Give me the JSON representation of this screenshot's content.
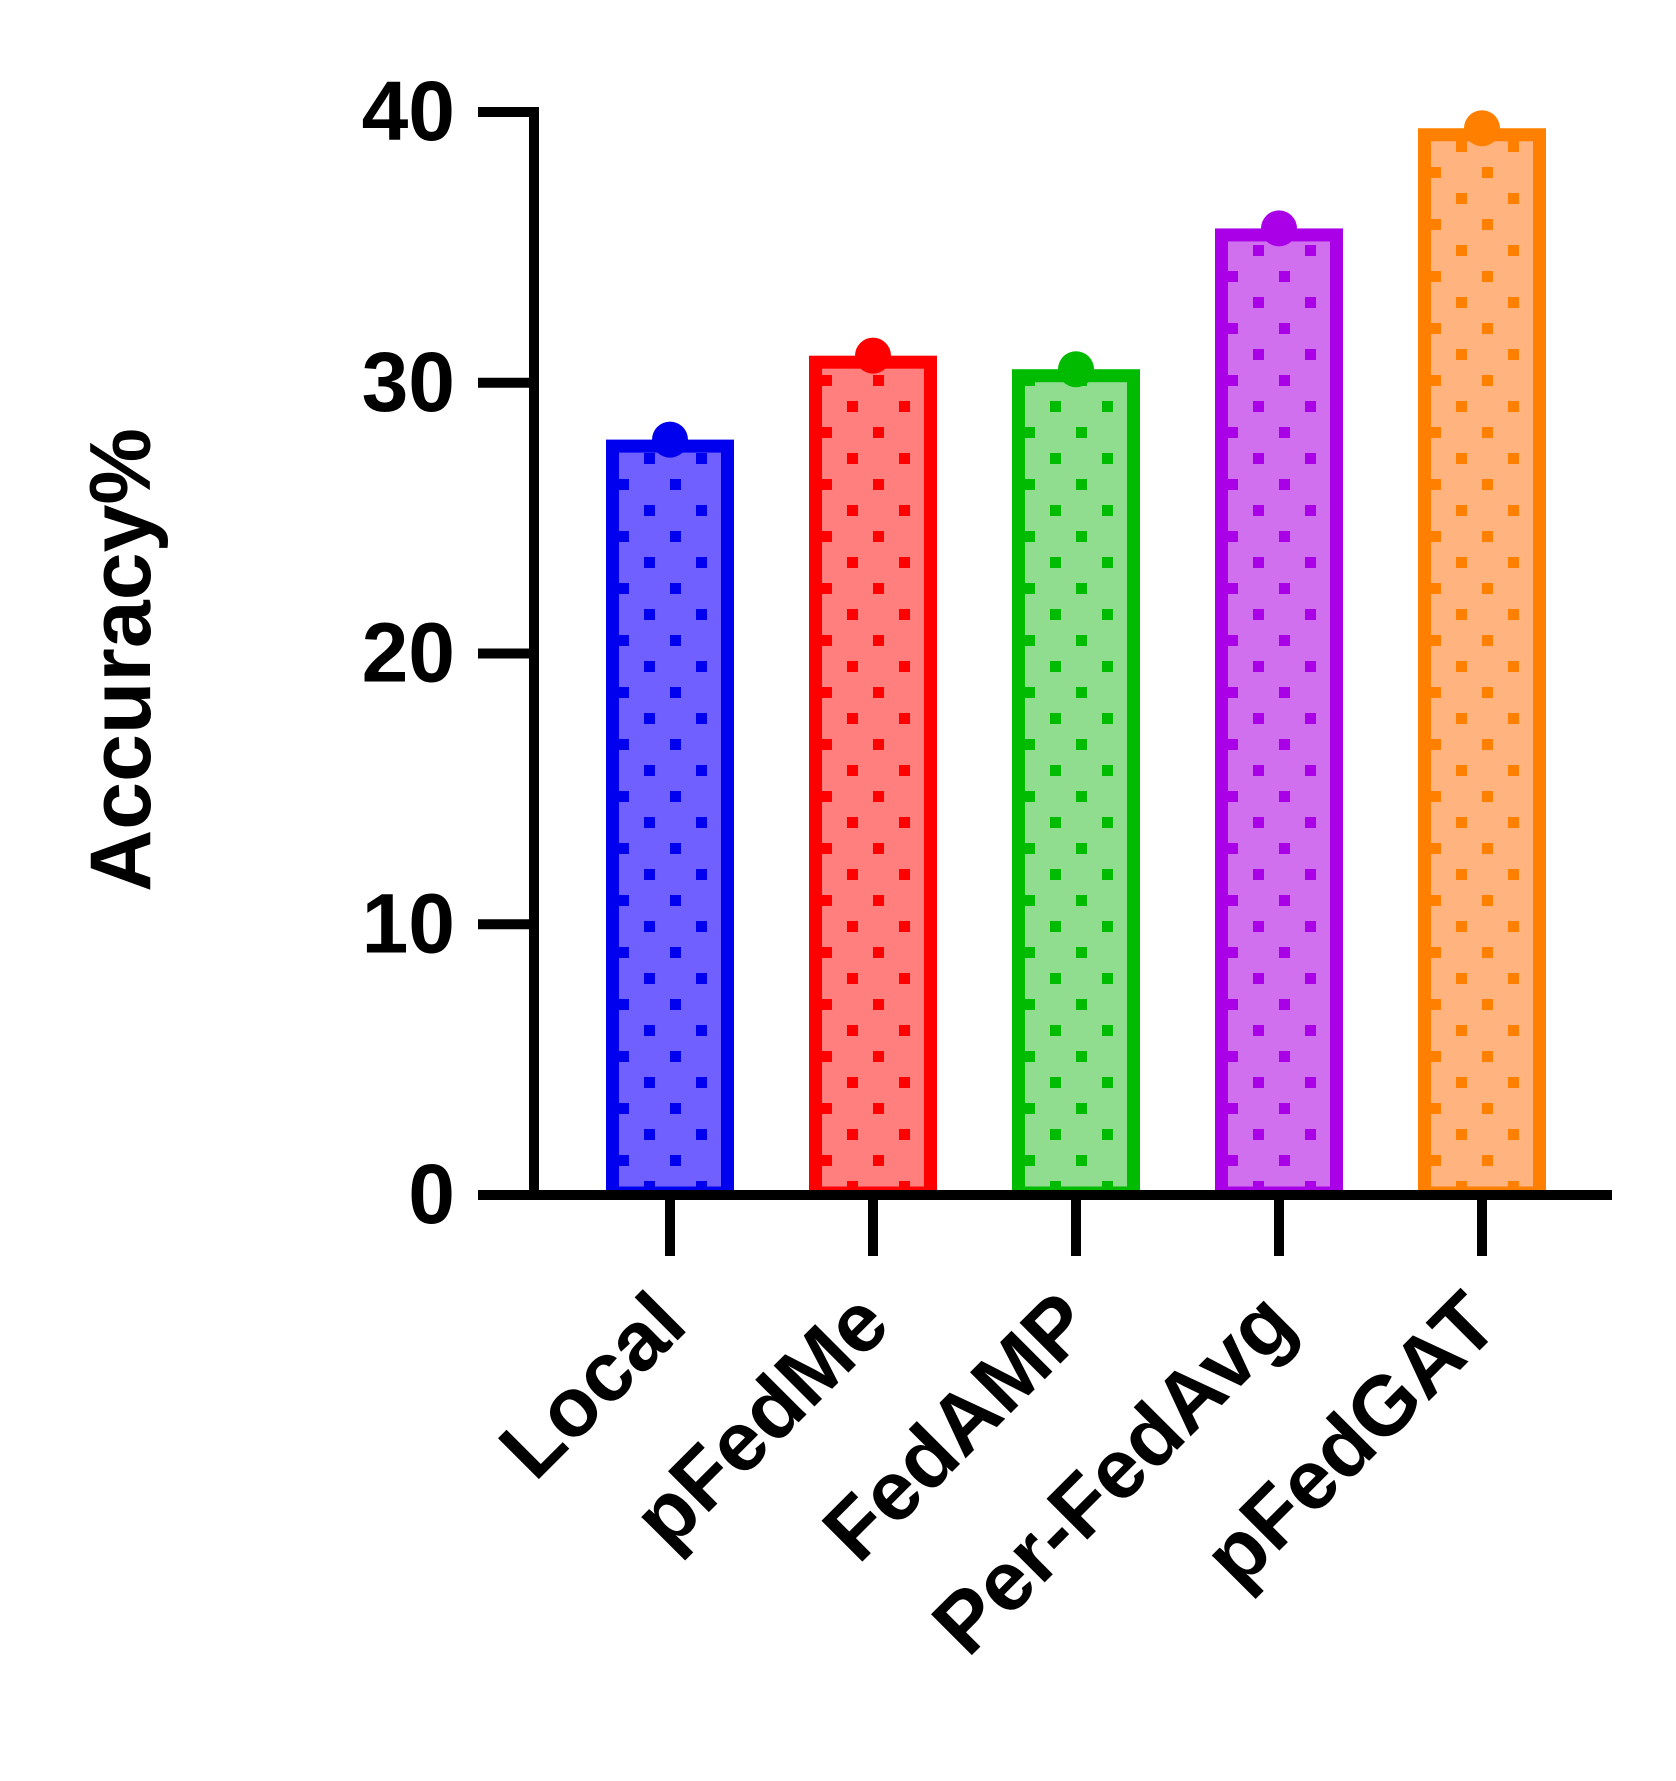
{
  "chart_data": {
    "type": "bar",
    "title": "",
    "xlabel": "",
    "ylabel": "Accuracy%",
    "ylim": [
      0,
      40
    ],
    "yticks": [
      "0",
      "10",
      "20",
      "30",
      "40"
    ],
    "categories": [
      "Local",
      "pFedMe",
      "FedAMP",
      "Per-FedAvg",
      "pFedGAT"
    ],
    "values": [
      27.9,
      31.0,
      30.5,
      35.7,
      39.4
    ],
    "bar_colors": [
      "#0000ee",
      "#ff0000",
      "#00bb00",
      "#aa00e8",
      "#ff8000"
    ],
    "bar_fill_colors": [
      "#7060ff",
      "#ff7f7f",
      "#90dd90",
      "#d070ee",
      "#ffb37f"
    ],
    "pattern": "dots",
    "grid": false,
    "legend": "none"
  }
}
